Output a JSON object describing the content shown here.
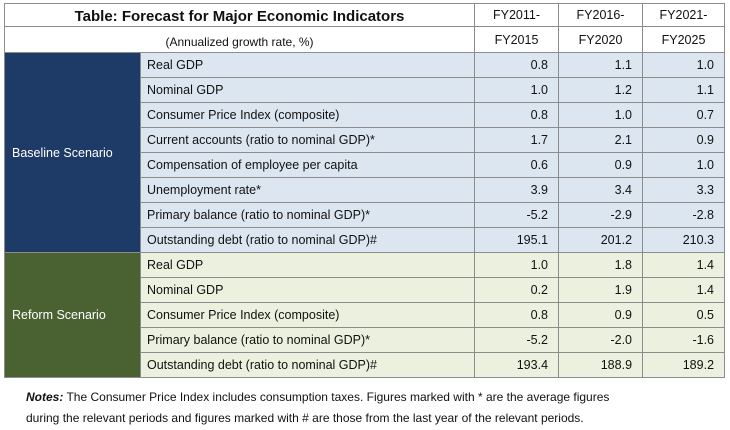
{
  "header": {
    "title": "Table: Forecast for Major Economic Indicators",
    "subtitle": "(Annualized growth rate, %)",
    "periods": [
      {
        "top": "FY2011-",
        "bottom": "FY2015"
      },
      {
        "top": "FY2016-",
        "bottom": "FY2020"
      },
      {
        "top": "FY2021-",
        "bottom": "FY2025"
      }
    ]
  },
  "baseline": {
    "name": "Baseline Scenario",
    "rows": [
      {
        "label": "Real GDP",
        "v": [
          "0.8",
          "1.1",
          "1.0"
        ]
      },
      {
        "label": "Nominal GDP",
        "v": [
          "1.0",
          "1.2",
          "1.1"
        ]
      },
      {
        "label": "Consumer Price Index (composite)",
        "v": [
          "0.8",
          "1.0",
          "0.7"
        ]
      },
      {
        "label": "Current accounts (ratio to nominal GDP)*",
        "v": [
          "1.7",
          "2.1",
          "0.9"
        ]
      },
      {
        "label": "Compensation of employee per capita",
        "v": [
          "0.6",
          "0.9",
          "1.0"
        ]
      },
      {
        "label": "Unemployment rate*",
        "v": [
          "3.9",
          "3.4",
          "3.3"
        ]
      },
      {
        "label": "Primary balance (ratio to nominal GDP)*",
        "v": [
          "-5.2",
          "-2.9",
          "-2.8"
        ]
      },
      {
        "label": "Outstanding debt (ratio to nominal GDP)#",
        "v": [
          "195.1",
          "201.2",
          "210.3"
        ]
      }
    ]
  },
  "reform": {
    "name": "Reform Scenario",
    "rows": [
      {
        "label": "Real GDP",
        "v": [
          "1.0",
          "1.8",
          "1.4"
        ]
      },
      {
        "label": "Nominal GDP",
        "v": [
          "0.2",
          "1.9",
          "1.4"
        ]
      },
      {
        "label": "Consumer Price Index (composite)",
        "v": [
          "0.8",
          "0.9",
          "0.5"
        ]
      },
      {
        "label": "Primary balance (ratio to nominal GDP)*",
        "v": [
          "-5.2",
          "-2.0",
          "-1.6"
        ]
      },
      {
        "label": "Outstanding debt (ratio to nominal GDP)#",
        "v": [
          "193.4",
          "188.9",
          "189.2"
        ]
      }
    ]
  },
  "notes": {
    "label": "Notes:",
    "line1": " The Consumer Price Index includes consumption taxes. Figures marked with * are the average figures",
    "line2": "during the relevant periods and figures marked with # are those from the last year of the relevant periods."
  }
}
